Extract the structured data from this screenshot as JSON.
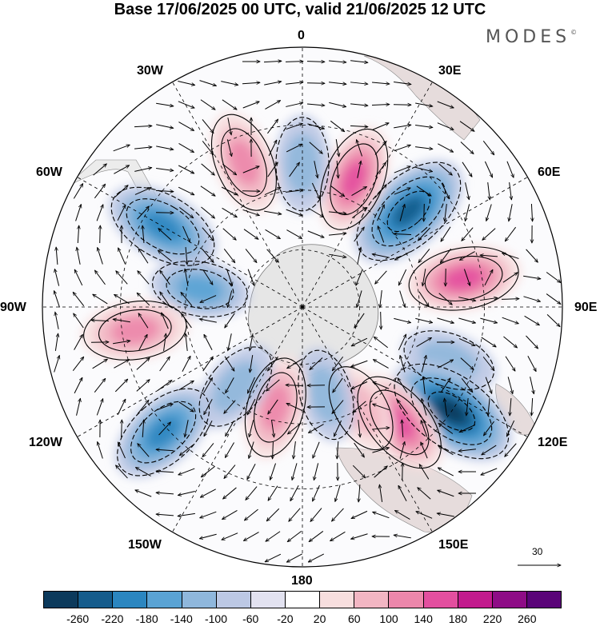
{
  "title": "Base 17/06/2025 00 UTC, valid 21/06/2025 12 UTC",
  "brand": "MODES",
  "brand_mark": "©",
  "longitude_labels": {
    "n": "0",
    "e30": "30E",
    "e60": "60E",
    "e90": "90E",
    "e120": "120E",
    "e150": "150E",
    "s": "180",
    "w150": "150W",
    "w120": "120W",
    "w90": "90W",
    "w60": "60W",
    "w30": "30W"
  },
  "reference_vector": {
    "label": "30",
    "units": "wind speed reference"
  },
  "colorbar": {
    "colors": [
      "#0c3a5c",
      "#155c8c",
      "#2b86c0",
      "#5aa3d4",
      "#8fb7dc",
      "#bcc8e4",
      "#e2e2f0",
      "#ffffff",
      "#f7dede",
      "#f2b6c3",
      "#ec87ab",
      "#e34f9f",
      "#c21b8d",
      "#8e0c86",
      "#5a0478"
    ],
    "tick_labels": [
      "-260",
      "-220",
      "-180",
      "-140",
      "-100",
      "-60",
      "-20",
      "20",
      "60",
      "100",
      "140",
      "180",
      "220",
      "260"
    ]
  },
  "anomaly_centers": [
    {
      "lon": 48,
      "lat_ring": 0.55,
      "sign": "negative",
      "strength": 240
    },
    {
      "lon": 22,
      "lat_ring": 0.53,
      "sign": "positive",
      "strength": 160
    },
    {
      "lon": 0,
      "lat_ring": 0.55,
      "sign": "negative",
      "strength": 110
    },
    {
      "lon": -22,
      "lat_ring": 0.6,
      "sign": "positive",
      "strength": 140
    },
    {
      "lon": -60,
      "lat_ring": 0.62,
      "sign": "negative",
      "strength": 190
    },
    {
      "lon": -80,
      "lat_ring": 0.4,
      "sign": "negative",
      "strength": 120
    },
    {
      "lon": -98,
      "lat_ring": 0.65,
      "sign": "positive",
      "strength": 150
    },
    {
      "lon": 80,
      "lat_ring": 0.63,
      "sign": "positive",
      "strength": 180
    },
    {
      "lon": 110,
      "lat_ring": 0.6,
      "sign": "negative",
      "strength": 110
    },
    {
      "lon": 125,
      "lat_ring": 0.7,
      "sign": "negative",
      "strength": 260
    },
    {
      "lon": 140,
      "lat_ring": 0.58,
      "sign": "positive",
      "strength": 170
    },
    {
      "lon": 150,
      "lat_ring": 0.45,
      "sign": "positive",
      "strength": 100
    },
    {
      "lon": 165,
      "lat_ring": 0.35,
      "sign": "negative",
      "strength": 100
    },
    {
      "lon": -165,
      "lat_ring": 0.4,
      "sign": "positive",
      "strength": 140
    },
    {
      "lon": -140,
      "lat_ring": 0.4,
      "sign": "negative",
      "strength": 110
    },
    {
      "lon": -132,
      "lat_ring": 0.72,
      "sign": "negative",
      "strength": 180
    }
  ]
}
